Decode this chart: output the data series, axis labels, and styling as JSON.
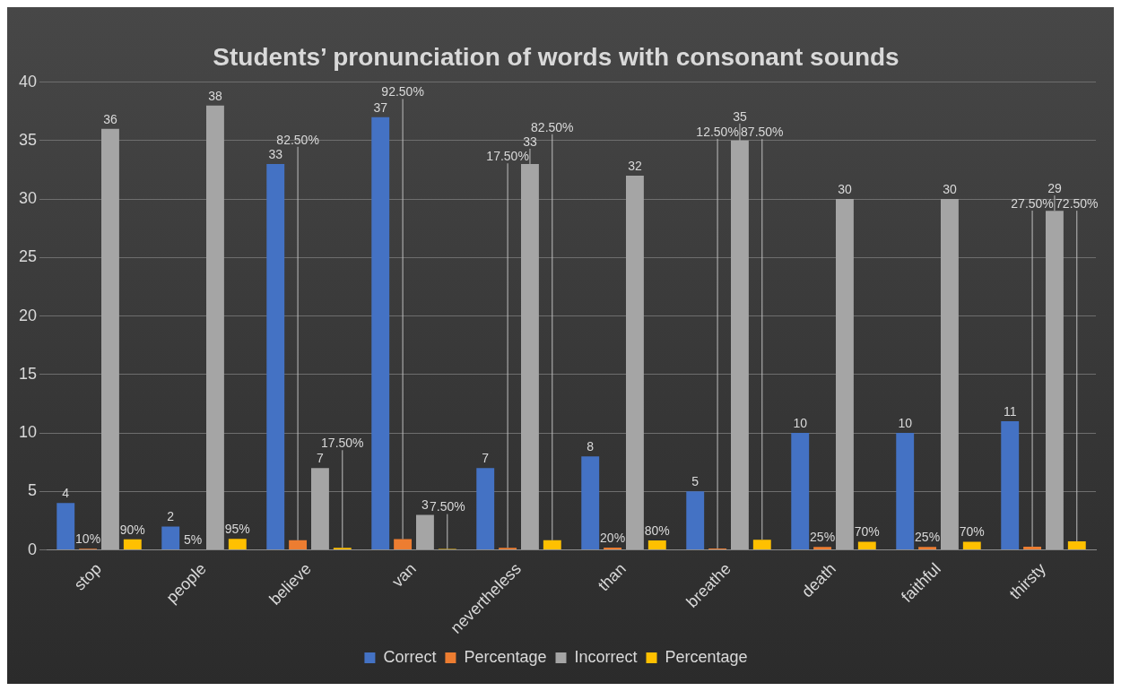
{
  "chart_data": {
    "type": "bar",
    "title": "Students’ pronunciation of words with consonant sounds",
    "categories": [
      "stop",
      "people",
      "believe",
      "van",
      "nevertheless",
      "than",
      "breathe",
      "death",
      "faithful",
      "thirsty"
    ],
    "series": [
      {
        "name": "Correct",
        "color": "#4472c4",
        "values": [
          4,
          2,
          33,
          37,
          7,
          8,
          5,
          10,
          10,
          11
        ],
        "value_labels": [
          "4",
          "2",
          "33",
          "37",
          "7",
          "8",
          "5",
          "10",
          "10",
          "11"
        ]
      },
      {
        "name": "Percentage",
        "color": "#ed7d31",
        "values": [
          0.1,
          0.05,
          0.825,
          0.925,
          0.175,
          0.2,
          0.125,
          0.25,
          0.25,
          0.275
        ],
        "value_labels": [
          "10%",
          "5%",
          "82.50%",
          "92.50%",
          "17.50%",
          "20%",
          "12.50%",
          "25%",
          "25%",
          "27.50%"
        ]
      },
      {
        "name": "Incorrect",
        "color": "#a5a5a5",
        "values": [
          36,
          38,
          7,
          3,
          33,
          32,
          35,
          30,
          30,
          29
        ],
        "value_labels": [
          "36",
          "38",
          "7",
          "3",
          "33",
          "32",
          "35",
          "30",
          "30",
          "29"
        ]
      },
      {
        "name": "Percentage",
        "color": "#ffc000",
        "values": [
          0.9,
          0.95,
          0.175,
          0.075,
          0.825,
          0.8,
          0.875,
          0.7,
          0.7,
          0.725
        ],
        "value_labels": [
          "90%",
          "95%",
          "17.50%",
          "7.50%",
          "82.50%",
          "80%",
          "87.50%",
          "70%",
          "70%",
          "72.50%"
        ]
      }
    ],
    "ylim": [
      0,
      40
    ],
    "yticks": [
      0,
      5,
      10,
      15,
      20,
      25,
      30,
      35,
      40
    ],
    "grid": "y",
    "legend": "bottom"
  }
}
